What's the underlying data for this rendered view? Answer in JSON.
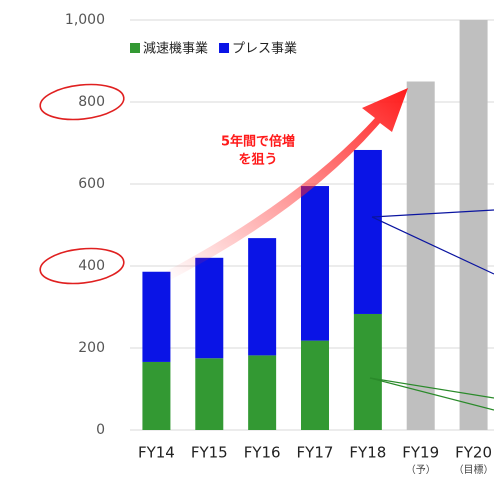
{
  "chart_data": {
    "type": "stacked_bar",
    "categories": [
      "FY14",
      "FY15",
      "FY16",
      "FY17",
      "FY18",
      "FY19",
      "FY20"
    ],
    "category_notes": [
      null,
      null,
      null,
      null,
      null,
      "（予）",
      "（目標）"
    ],
    "series": [
      {
        "name": "減速機事業",
        "color": "#339933",
        "values": [
          166,
          175,
          182,
          218,
          283,
          null,
          null
        ]
      },
      {
        "name": "プレス事業",
        "color": "#0a14e6",
        "values": [
          220,
          245,
          286,
          377,
          400,
          null,
          null
        ]
      },
      {
        "color": "#bfbfbf",
        "values": [
          null,
          null,
          null,
          null,
          null,
          850,
          1000
        ]
      }
    ],
    "annotation": [
      "5年間で倍増",
      "を狙う"
    ],
    "ylim": [
      0,
      1000
    ],
    "yticks": [
      0,
      200,
      400,
      600,
      800,
      {
        "value": 1000,
        "label": "1,000"
      }
    ],
    "grid": true
  }
}
